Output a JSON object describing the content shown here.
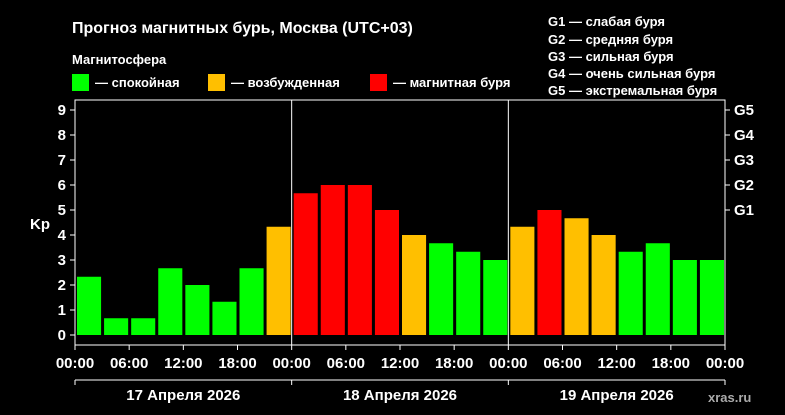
{
  "header": {
    "title": "Прогноз магнитных бурь, Москва (UTC+03)",
    "legend_title": "Магнитосфера",
    "legend": [
      {
        "label": "— спокойная",
        "color": "#00ff00"
      },
      {
        "label": "— возбужденная",
        "color": "#ffbf00"
      },
      {
        "label": "— магнитная буря",
        "color": "#ff0000"
      }
    ],
    "storm_scale": [
      "G1 — слабая буря",
      "G2 — средняя буря",
      "G3 — сильная буря",
      "G4 — очень сильная буря",
      "G5 — экстремальная буря"
    ]
  },
  "watermark": "xras.ru",
  "chart_data": {
    "type": "bar",
    "ylabel": "Kp",
    "ylim": [
      0,
      9
    ],
    "yticks": [
      "0",
      "1",
      "2",
      "3",
      "4",
      "5",
      "6",
      "7",
      "8",
      "9"
    ],
    "g_ticks": [
      {
        "label": "G1",
        "kp": 5
      },
      {
        "label": "G2",
        "kp": 6
      },
      {
        "label": "G3",
        "kp": 7
      },
      {
        "label": "G4",
        "kp": 8
      },
      {
        "label": "G5",
        "kp": 9
      }
    ],
    "x_tick_labels": [
      "00:00",
      "06:00",
      "12:00",
      "18:00",
      "00:00",
      "06:00",
      "12:00",
      "18:00",
      "00:00",
      "06:00",
      "12:00",
      "18:00",
      "00:00"
    ],
    "days": [
      "17 Апреля 2026",
      "18 Апреля 2026",
      "19 Апреля 2026"
    ],
    "values": [
      2.33,
      0.67,
      0.67,
      2.67,
      2.0,
      1.33,
      2.67,
      4.33,
      5.67,
      6.0,
      6.0,
      5.0,
      4.0,
      3.67,
      3.33,
      3.0,
      4.33,
      5.0,
      4.67,
      4.0,
      3.33,
      3.67,
      3.0,
      3.0
    ],
    "colors": {
      "quiet": "#00ff00",
      "active": "#ffbf00",
      "storm": "#ff0000"
    },
    "grid": false
  }
}
